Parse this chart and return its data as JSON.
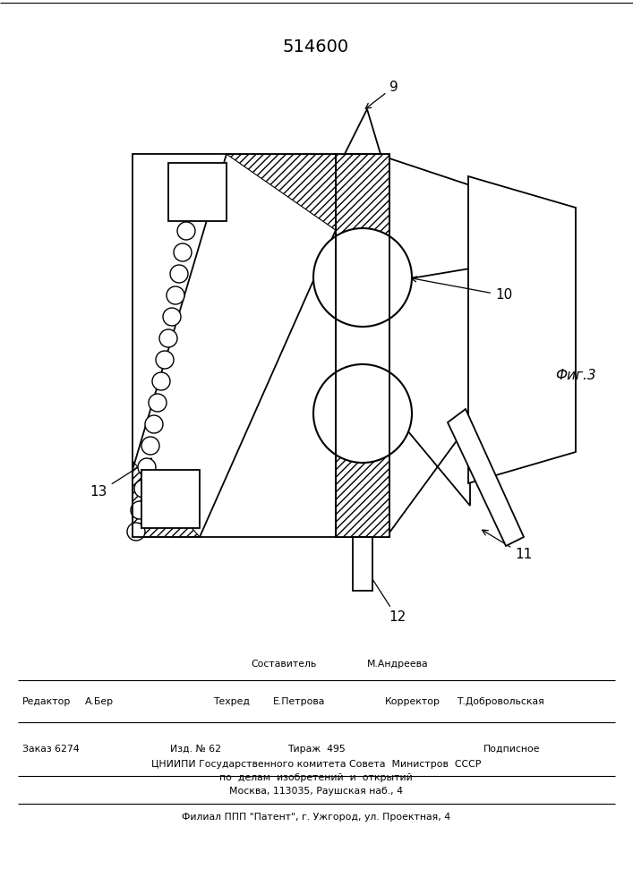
{
  "title": "514600",
  "fig_label": "Фиг.3",
  "bg_color": "#ffffff",
  "bottom": {
    "sestavitel": "Составитель",
    "andreeva": "М.Андреева",
    "redaktor": "Редактор",
    "aber": "А.Бер",
    "tehred": "Техред",
    "petrova": "Е.Петрова",
    "korrektor": "Корректор",
    "dobr": "Т.Добровольская",
    "zakaz": "Заказ 6274",
    "izd": "Изд. № 62",
    "tirazh": "Тираж  495",
    "podpisnoe": "Подписное",
    "cniip1": "ЦНИИПИ Государственного комитета Совета  Министров  СССР",
    "cniip2": "по  делам  изобретений  и  открытий",
    "cniip3": "Москва, 113035, Раушская наб., 4",
    "filial": "Филиал ППП \"Патент\", г. Ужгород, ул. Проектная, 4"
  }
}
